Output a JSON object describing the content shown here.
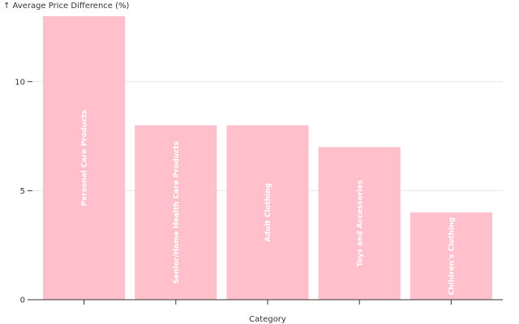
{
  "chart_data": {
    "type": "bar",
    "categories": [
      "Personal Care Products",
      "Senior/Home Health Care Products",
      "Adult Clothing",
      "Toys and Accessories",
      "Children's Clothing"
    ],
    "values": [
      13,
      8,
      8,
      7,
      4
    ],
    "ylabel": "↑ Average Price Difference (%)",
    "xlabel": "Category",
    "ylim": [
      0,
      13
    ],
    "yticks": [
      0,
      5,
      10
    ],
    "grid": true,
    "bar_color": "#ffc0cb",
    "label_color": "#ffffff"
  }
}
